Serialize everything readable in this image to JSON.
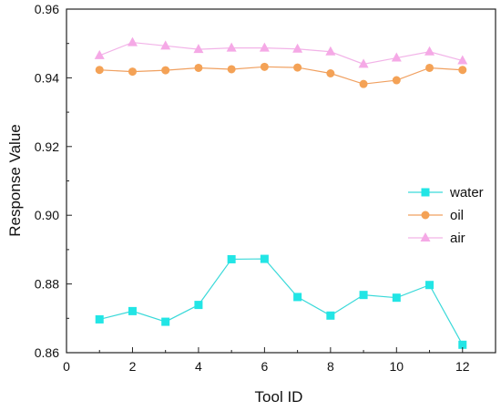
{
  "chart_data": {
    "type": "line",
    "title": "",
    "xlabel": "Tool ID",
    "ylabel": "Response Value",
    "xlim": [
      0,
      13
    ],
    "ylim": [
      0.86,
      0.96
    ],
    "xticks": [
      0,
      2,
      4,
      6,
      8,
      10,
      12
    ],
    "xtick_labels": [
      "0",
      "2",
      "4",
      "6",
      "8",
      "10",
      "12"
    ],
    "yticks": [
      0.86,
      0.88,
      0.9,
      0.92,
      0.94,
      0.96
    ],
    "ytick_labels": [
      "0.86",
      "0.88",
      "0.90",
      "0.92",
      "0.94",
      "0.96"
    ],
    "grid": false,
    "legend_position": "center-right",
    "x": [
      1,
      2,
      3,
      4,
      5,
      6,
      7,
      8,
      9,
      10,
      11,
      12
    ],
    "series": [
      {
        "name": "water",
        "marker": "square",
        "color": "#22e5e5",
        "line_color": "#3ad9d9",
        "values": [
          0.8697,
          0.8721,
          0.869,
          0.8739,
          0.8872,
          0.8873,
          0.8762,
          0.8708,
          0.8768,
          0.876,
          0.8797,
          0.8623
        ]
      },
      {
        "name": "oil",
        "marker": "circle",
        "color": "#f4a256",
        "line_color": "#f0a060",
        "values": [
          0.9423,
          0.9418,
          0.9422,
          0.9429,
          0.9425,
          0.9432,
          0.943,
          0.9413,
          0.9382,
          0.9393,
          0.9429,
          0.9423
        ]
      },
      {
        "name": "air",
        "marker": "triangle",
        "color": "#f5a9e6",
        "line_color": "#f2b3e8",
        "values": [
          0.9465,
          0.9503,
          0.9493,
          0.9483,
          0.9487,
          0.9487,
          0.9484,
          0.9476,
          0.944,
          0.9458,
          0.9476,
          0.945
        ]
      }
    ]
  }
}
